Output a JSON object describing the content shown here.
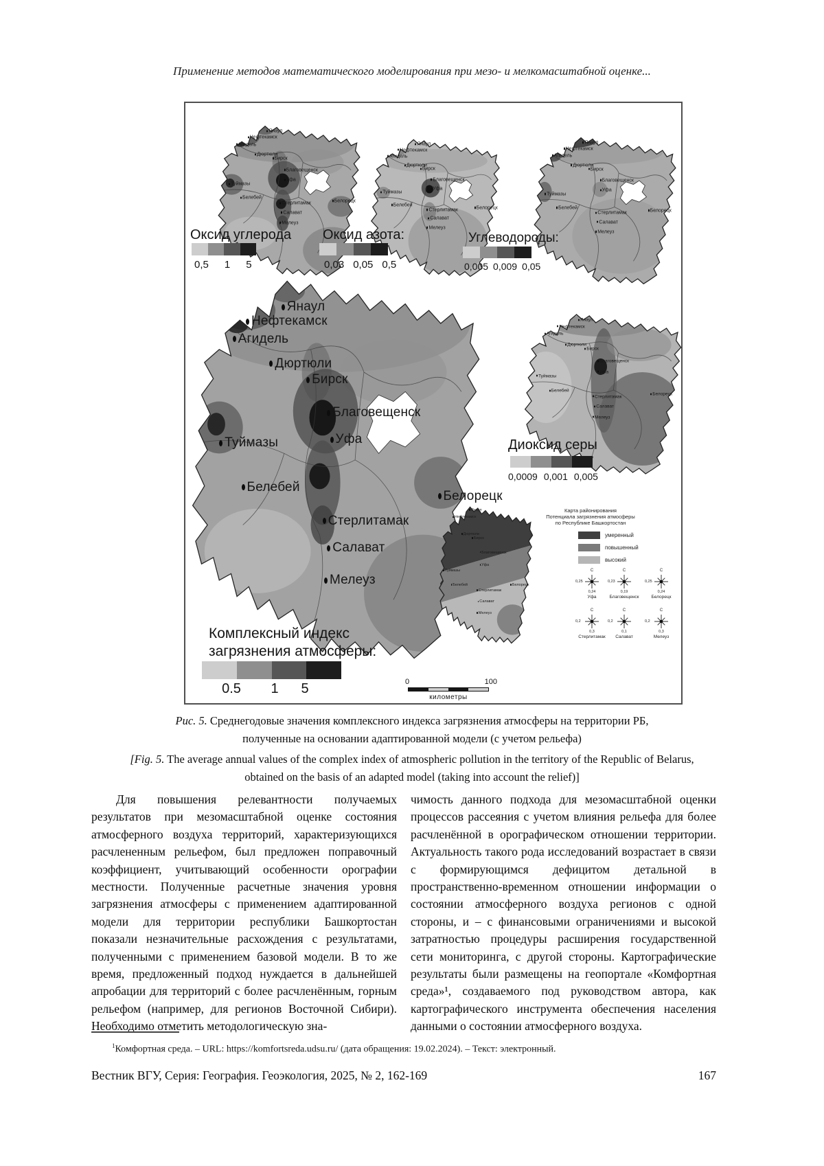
{
  "page": {
    "running_header": "Применение методов математического моделирования при мезо- и мелкомасштабной оценке...",
    "footnote_marker": "1",
    "footnote_text": "Комфортная среда. – URL: https://komfortsreda.udsu.ru/ (дата обращения: 19.02.2024). – Текст: электронный.",
    "footer_journal": "Вестник ВГУ, Серия: География. Геоэкология, 2025, № 2, 162-169",
    "footer_page_number": "167"
  },
  "figure": {
    "maps": {
      "co": {
        "title": "Оксид углерода",
        "scale_values": [
          "0,5",
          "1",
          "5"
        ]
      },
      "no2": {
        "title": "Оксид азота:",
        "scale_values": [
          "0,03",
          "0,05",
          "0,5"
        ]
      },
      "hc": {
        "title": "Углеводороды:",
        "scale_values": [
          "0,005",
          "0,009",
          "0,05"
        ]
      },
      "so2": {
        "title": "Диоксид серы",
        "scale_values": [
          "0,0009",
          "0,001",
          "0,005"
        ]
      },
      "complex_index": {
        "title_line1": "Комплексный индекс",
        "title_line2": "загрязнения атмосферы:",
        "scale_values": [
          "0.5",
          "1",
          "5"
        ]
      }
    },
    "cities": [
      "Янаул",
      "Нефтекамск",
      "Агидель",
      "Дюртюли",
      "Бирск",
      "Благовещенск",
      "Уфа",
      "Туймазы",
      "Белебей",
      "Белорецк",
      "Стерлитамак",
      "Салават",
      "Мелеуз"
    ],
    "zoning_map": {
      "legend_title_lines": [
        "Карта районирования",
        "Потенциала загрязнения атмосферы",
        "по Республике Башкортостан"
      ],
      "legend_classes": [
        "умеренный",
        "повышенный",
        "высокий"
      ],
      "rose_north_label": "С",
      "wind_roses": [
        {
          "city": "Уфа",
          "side_value": "0,25",
          "bottom_value": "0,24"
        },
        {
          "city": "Благовещенск",
          "side_value": "0,23",
          "bottom_value": "0,19"
        },
        {
          "city": "Белорецк",
          "side_value": "0,25",
          "bottom_value": "0,24"
        },
        {
          "city": "Стерлитамак",
          "side_value": "0,2",
          "bottom_value": "0,3"
        },
        {
          "city": "Салават",
          "side_value": "0,2",
          "bottom_value": "0,1"
        },
        {
          "city": "Мелеуз",
          "side_value": "0,2",
          "bottom_value": "0,3"
        }
      ]
    },
    "scale_bar": {
      "start": "0",
      "end": "100",
      "units": "километры"
    }
  },
  "captions": {
    "ru_prefix": "Рис. 5.",
    "ru_line1": "Среднегодовые значения комплексного индекса загрязнения атмосферы на территории РБ,",
    "ru_line2": "полученные на основании адаптированной модели (с учетом рельефа)",
    "en_prefix": "[Fig. 5.",
    "en_line1": "The average annual values of the complex index of atmospheric pollution in the territory of the Republic of Belarus,",
    "en_line2": "obtained on the basis of an adapted model (taking into account the relief)]"
  },
  "body": {
    "left_column": "Для повышения релевантности получаемых результатов при мезомасштабной оценке состояния атмосферного воздуха территорий, характеризующихся расчлененным рельефом, был предложен поправочный коэффициент, учитывающий особенности орографии местности. Полученные расчетные значения уровня загрязнения атмосферы с применением адаптированной модели для территории республики Башкортостан показали незначительные расхождения с результатами, полученными с применением базовой модели. В то же время, предложенный подход нуждается в дальнейшей апробации для территорий с более расчленённым, горным рельефом (например, для регионов Восточной Сибири). Необходимо отметить методологическую зна-",
    "right_column": "чимость данного подхода для мезомасштабной оценки процессов рассеяния с учетом влияния рельефа для более расчленённой в орографическом отношении территории. Актуальность такого рода исследований возрастает в связи с формирующимся дефицитом детальной в пространственно-временном отношении информации о состоянии атмосферного воздуха регионов с одной стороны, и – с финансовыми ограничениями и высокой затратностью процедуры расширения государственной сети мониторинга, с другой стороны. Картографические результаты были размещены на геопортале «Комфортная среда»¹, создаваемого под руководством автора, как картографического инструмента обеспечения населения данными о состоянии атмосферного воздуха."
  }
}
